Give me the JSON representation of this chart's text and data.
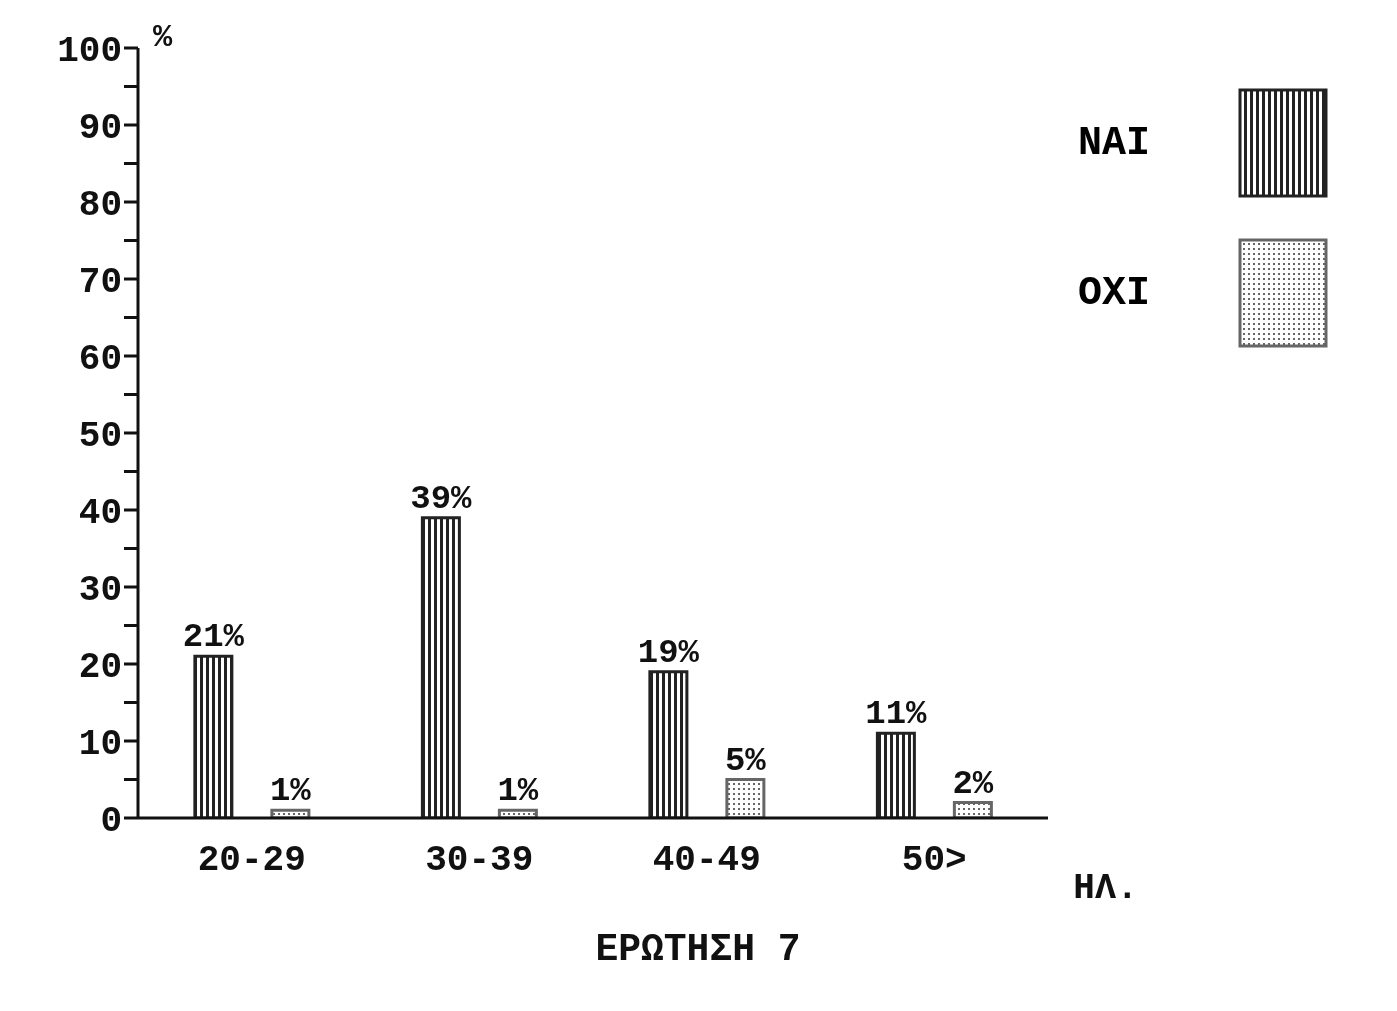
{
  "chart_data": {
    "type": "bar",
    "title": "ΕΡΩΤΗΣΗ 7",
    "xlabel": "ΗΛ.",
    "ylabel": "%",
    "categories": [
      "20-29",
      "30-39",
      "40-49",
      "50>"
    ],
    "series": [
      {
        "name": "ΝΑΙ",
        "color": "#222222",
        "values": [
          21,
          39,
          19,
          11
        ],
        "value_labels": [
          "21%",
          "39%",
          "19%",
          "11%"
        ]
      },
      {
        "name": "ΟΧΙ",
        "color": "#666666",
        "values": [
          1,
          1,
          5,
          2
        ],
        "value_labels": [
          "1%",
          "1%",
          "5%",
          "2%"
        ]
      }
    ],
    "ylim": [
      0,
      100
    ],
    "yticks": [
      0,
      {
        "value": 5,
        "label": null
      },
      10,
      {
        "value": 15,
        "label": null
      },
      20,
      {
        "value": 25,
        "label": null
      },
      30,
      {
        "value": 35,
        "label": null
      },
      40,
      {
        "value": 45,
        "label": null
      },
      50,
      {
        "value": 55,
        "label": null
      },
      60,
      {
        "value": 65,
        "label": null
      },
      70,
      {
        "value": 75,
        "label": null
      },
      80,
      {
        "value": 85,
        "label": null
      },
      90,
      {
        "value": 95,
        "label": null
      },
      100
    ],
    "grid": false,
    "legend": "top right"
  }
}
